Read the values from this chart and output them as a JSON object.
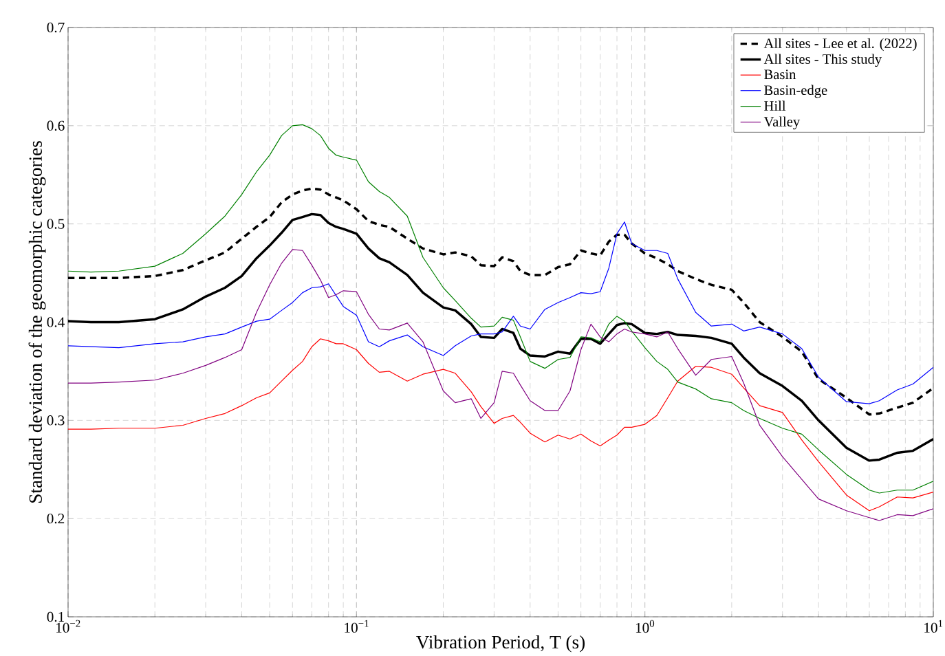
{
  "chart_data": {
    "type": "line",
    "xlabel": "Vibration Period, T (s)",
    "ylabel": "Standard deviation of the geomorphic categories",
    "log": "x",
    "grid": true,
    "legend": "top right",
    "marker": "none",
    "xlim": [
      0.01,
      10
    ],
    "ylim": [
      0.1,
      0.7
    ],
    "xticks": [
      {
        "value": 0.01,
        "label": "10$^{−2}$"
      },
      {
        "value": 0.1,
        "label": "10$^{−1}$"
      },
      {
        "value": 1,
        "label": "10$^{0}$"
      },
      {
        "value": 10,
        "label": "10$^{1}$"
      }
    ],
    "yticks": [
      0.1,
      0.2,
      0.3,
      0.4,
      0.5,
      0.6,
      0.7
    ],
    "x": [
      0.01,
      0.012,
      0.015,
      0.02,
      0.025,
      0.03,
      0.035,
      0.04,
      0.045,
      0.05,
      0.055,
      0.06,
      0.065,
      0.07,
      0.075,
      0.08,
      0.085,
      0.09,
      0.1,
      0.11,
      0.12,
      0.13,
      0.15,
      0.17,
      0.2,
      0.22,
      0.25,
      0.27,
      0.3,
      0.32,
      0.35,
      0.37,
      0.4,
      0.45,
      0.5,
      0.55,
      0.6,
      0.65,
      0.7,
      0.75,
      0.8,
      0.85,
      0.9,
      1.0,
      1.1,
      1.2,
      1.3,
      1.5,
      1.7,
      2.0,
      2.2,
      2.5,
      3.0,
      3.5,
      4.0,
      5.0,
      6.0,
      6.5,
      7.5,
      8.5,
      10
    ],
    "series": [
      {
        "name": "All sites - Lee et al. (2022)",
        "color": "#000000",
        "line_style": "dashed",
        "values": [
          0.445,
          0.445,
          0.445,
          0.447,
          0.453,
          0.463,
          0.471,
          0.485,
          0.497,
          0.507,
          0.522,
          0.53,
          0.534,
          0.536,
          0.535,
          0.53,
          0.527,
          0.524,
          0.515,
          0.503,
          0.499,
          0.497,
          0.485,
          0.475,
          0.469,
          0.471,
          0.467,
          0.458,
          0.457,
          0.466,
          0.462,
          0.452,
          0.448,
          0.448,
          0.456,
          0.459,
          0.473,
          0.47,
          0.468,
          0.482,
          0.489,
          0.489,
          0.48,
          0.47,
          0.465,
          0.459,
          0.452,
          0.444,
          0.438,
          0.433,
          0.42,
          0.4,
          0.385,
          0.37,
          0.342,
          0.323,
          0.306,
          0.307,
          0.313,
          0.318,
          0.333
        ]
      },
      {
        "name": "All sites - This study",
        "color": "#000000",
        "line_style": "solid",
        "values": [
          0.401,
          0.4,
          0.4,
          0.403,
          0.413,
          0.426,
          0.435,
          0.447,
          0.465,
          0.478,
          0.491,
          0.504,
          0.507,
          0.51,
          0.509,
          0.501,
          0.497,
          0.495,
          0.49,
          0.475,
          0.465,
          0.461,
          0.448,
          0.43,
          0.415,
          0.412,
          0.398,
          0.385,
          0.384,
          0.393,
          0.389,
          0.373,
          0.366,
          0.365,
          0.37,
          0.368,
          0.383,
          0.383,
          0.378,
          0.388,
          0.397,
          0.399,
          0.398,
          0.389,
          0.388,
          0.39,
          0.387,
          0.386,
          0.384,
          0.378,
          0.364,
          0.348,
          0.335,
          0.32,
          0.3,
          0.272,
          0.259,
          0.26,
          0.267,
          0.269,
          0.281
        ]
      },
      {
        "name": "Basin",
        "color": "#ff0000",
        "line_style": "solid",
        "values": [
          0.291,
          0.291,
          0.292,
          0.292,
          0.295,
          0.302,
          0.307,
          0.315,
          0.323,
          0.328,
          0.34,
          0.351,
          0.36,
          0.375,
          0.383,
          0.381,
          0.378,
          0.378,
          0.372,
          0.358,
          0.349,
          0.35,
          0.34,
          0.347,
          0.352,
          0.348,
          0.329,
          0.314,
          0.297,
          0.302,
          0.305,
          0.298,
          0.287,
          0.278,
          0.285,
          0.281,
          0.286,
          0.279,
          0.274,
          0.28,
          0.285,
          0.293,
          0.293,
          0.296,
          0.305,
          0.323,
          0.34,
          0.355,
          0.354,
          0.347,
          0.333,
          0.315,
          0.308,
          0.28,
          0.258,
          0.224,
          0.208,
          0.212,
          0.222,
          0.221,
          0.227
        ]
      },
      {
        "name": "Basin-edge",
        "color": "#0000ff",
        "line_style": "solid",
        "values": [
          0.376,
          0.375,
          0.374,
          0.378,
          0.38,
          0.385,
          0.388,
          0.395,
          0.401,
          0.403,
          0.412,
          0.42,
          0.43,
          0.435,
          0.436,
          0.439,
          0.427,
          0.416,
          0.407,
          0.38,
          0.375,
          0.381,
          0.387,
          0.375,
          0.366,
          0.376,
          0.386,
          0.388,
          0.388,
          0.39,
          0.406,
          0.396,
          0.393,
          0.413,
          0.42,
          0.425,
          0.43,
          0.429,
          0.431,
          0.455,
          0.49,
          0.502,
          0.48,
          0.473,
          0.473,
          0.47,
          0.444,
          0.41,
          0.396,
          0.398,
          0.391,
          0.395,
          0.388,
          0.373,
          0.344,
          0.319,
          0.317,
          0.32,
          0.331,
          0.337,
          0.354
        ]
      },
      {
        "name": "Hill",
        "color": "#008000",
        "line_style": "solid",
        "values": [
          0.452,
          0.451,
          0.452,
          0.457,
          0.47,
          0.49,
          0.508,
          0.53,
          0.553,
          0.57,
          0.59,
          0.6,
          0.601,
          0.597,
          0.59,
          0.577,
          0.57,
          0.568,
          0.565,
          0.543,
          0.533,
          0.527,
          0.508,
          0.466,
          0.435,
          0.422,
          0.404,
          0.395,
          0.396,
          0.405,
          0.402,
          0.385,
          0.36,
          0.353,
          0.362,
          0.364,
          0.385,
          0.384,
          0.38,
          0.398,
          0.406,
          0.401,
          0.391,
          0.374,
          0.36,
          0.352,
          0.339,
          0.332,
          0.322,
          0.318,
          0.31,
          0.302,
          0.292,
          0.286,
          0.27,
          0.245,
          0.229,
          0.226,
          0.229,
          0.229,
          0.238
        ]
      },
      {
        "name": "Valley",
        "color": "#800080",
        "line_style": "solid",
        "values": [
          0.338,
          0.338,
          0.339,
          0.341,
          0.348,
          0.356,
          0.364,
          0.372,
          0.41,
          0.438,
          0.46,
          0.474,
          0.473,
          0.458,
          0.443,
          0.425,
          0.428,
          0.432,
          0.431,
          0.408,
          0.393,
          0.392,
          0.399,
          0.38,
          0.33,
          0.318,
          0.322,
          0.302,
          0.318,
          0.35,
          0.348,
          0.336,
          0.32,
          0.31,
          0.31,
          0.33,
          0.372,
          0.398,
          0.385,
          0.38,
          0.388,
          0.393,
          0.39,
          0.388,
          0.385,
          0.39,
          0.373,
          0.346,
          0.362,
          0.365,
          0.338,
          0.295,
          0.263,
          0.24,
          0.22,
          0.208,
          0.201,
          0.198,
          0.204,
          0.203,
          0.21
        ]
      }
    ]
  }
}
